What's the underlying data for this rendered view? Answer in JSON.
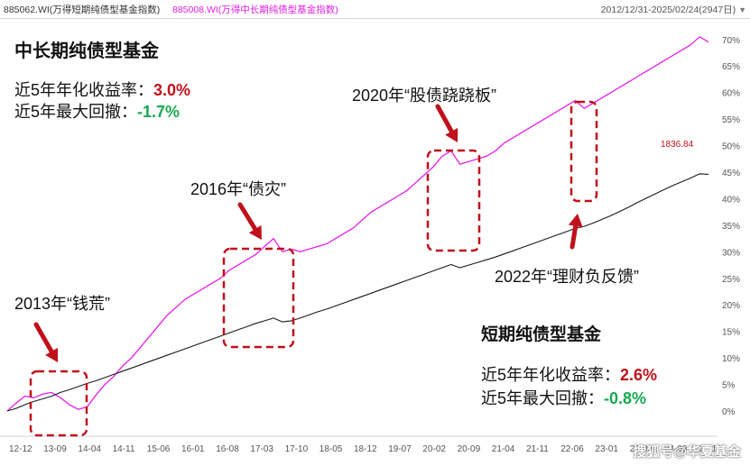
{
  "header": {
    "series1_label": "885062.WI(万得短期纯债型基金指数)",
    "series2_label": "885008.WI(万得中长期纯债型基金指数)",
    "date_range": "2012/12/31-2025/02/24(2947日)",
    "dropdown_icon": "triangle-down-icon"
  },
  "panel_long": {
    "title": "中长期纯债型基金",
    "ret_label": "近5年年化收益率：",
    "ret_value": "3.0%",
    "dd_label": "近5年最大回撤：",
    "dd_value": "-1.7%"
  },
  "panel_short": {
    "title": "短期纯债型基金",
    "ret_label": "近5年年化收益率：",
    "ret_value": "2.6%",
    "dd_label": "近5年最大回撤：",
    "dd_value": "-0.8%"
  },
  "annotations": [
    {
      "text": "2013年“钱荒”"
    },
    {
      "text": "2016年“债灾”"
    },
    {
      "text": "2020年“股债跷跷板”"
    },
    {
      "text": "2022年“理财负反馈”"
    }
  ],
  "last_value_label": "1836.84",
  "watermark": "搜狐号@华夏基金",
  "colors": {
    "long_series": "#e81ee8",
    "short_series": "#1a1a1a",
    "annotation": "#c0101a",
    "value_red": "#c0101a",
    "value_green": "#18a850"
  },
  "chart_data": {
    "type": "line",
    "x_tick_labels": [
      "12-12",
      "13-09",
      "14-04",
      "14-11",
      "15-06",
      "16-01",
      "16-08",
      "17-03",
      "17-10",
      "18-05",
      "18-12",
      "19-07",
      "20-02",
      "20-09",
      "21-04",
      "21-11",
      "22-06",
      "23-01",
      "23-08",
      "24-03",
      "24-10"
    ],
    "y_tick_labels": [
      "0%",
      "5%",
      "10%",
      "15%",
      "20%",
      "25%",
      "30%",
      "35%",
      "40%",
      "45%",
      "50%",
      "55%",
      "60%",
      "65%",
      "70%"
    ],
    "ylim": [
      0,
      72
    ],
    "y_unit": "%",
    "series": [
      {
        "name": "885008.WI(万得中长期纯债型基金指数)",
        "color": "#e81ee8",
        "points": [
          [
            0,
            0
          ],
          [
            1,
            1.5
          ],
          [
            2,
            2.8
          ],
          [
            3,
            2.5
          ],
          [
            4,
            3.2
          ],
          [
            5,
            3.5
          ],
          [
            6,
            2.5
          ],
          [
            7,
            1.2
          ],
          [
            8,
            0.3
          ],
          [
            9,
            0.8
          ],
          [
            10,
            3.0
          ],
          [
            11,
            5.0
          ],
          [
            12,
            6.5
          ],
          [
            13,
            8.5
          ],
          [
            14,
            10.0
          ],
          [
            15,
            12.0
          ],
          [
            16,
            14.0
          ],
          [
            17,
            16.0
          ],
          [
            18,
            18.0
          ],
          [
            19,
            19.5
          ],
          [
            20,
            21.0
          ],
          [
            21,
            22.0
          ],
          [
            22,
            23.0
          ],
          [
            23,
            24.0
          ],
          [
            24,
            25.0
          ],
          [
            25,
            26.5
          ],
          [
            26,
            27.5
          ],
          [
            27,
            28.5
          ],
          [
            28,
            29.5
          ],
          [
            29,
            31.0
          ],
          [
            30,
            32.5
          ],
          [
            31,
            30.0
          ],
          [
            32,
            30.5
          ],
          [
            33,
            30.0
          ],
          [
            34,
            30.5
          ],
          [
            35,
            31.0
          ],
          [
            36,
            31.5
          ],
          [
            37,
            32.5
          ],
          [
            38,
            33.5
          ],
          [
            39,
            34.5
          ],
          [
            40,
            36.0
          ],
          [
            41,
            37.5
          ],
          [
            42,
            38.5
          ],
          [
            43,
            39.5
          ],
          [
            44,
            40.5
          ],
          [
            45,
            41.5
          ],
          [
            46,
            43.0
          ],
          [
            47,
            44.5
          ],
          [
            48,
            46.0
          ],
          [
            49,
            48.0
          ],
          [
            50,
            49.0
          ],
          [
            51,
            46.5
          ],
          [
            52,
            47.0
          ],
          [
            53,
            47.5
          ],
          [
            54,
            48.0
          ],
          [
            55,
            49.0
          ],
          [
            56,
            50.5
          ],
          [
            57,
            51.5
          ],
          [
            58,
            52.5
          ],
          [
            59,
            53.5
          ],
          [
            60,
            54.5
          ],
          [
            61,
            55.5
          ],
          [
            62,
            56.5
          ],
          [
            63,
            57.5
          ],
          [
            64,
            58.5
          ],
          [
            65,
            57.0
          ],
          [
            66,
            58.0
          ],
          [
            67,
            59.0
          ],
          [
            68,
            60.0
          ],
          [
            69,
            61.0
          ],
          [
            70,
            62.0
          ],
          [
            71,
            63.0
          ],
          [
            72,
            64.0
          ],
          [
            73,
            65.0
          ],
          [
            74,
            66.0
          ],
          [
            75,
            67.0
          ],
          [
            76,
            68.0
          ],
          [
            77,
            69.0
          ],
          [
            78,
            70.5
          ],
          [
            79,
            69.5
          ]
        ]
      },
      {
        "name": "885062.WI(万得短期纯债型基金指数)",
        "color": "#1a1a1a",
        "value_label": "1836.84",
        "points": [
          [
            0,
            0
          ],
          [
            1,
            0.5
          ],
          [
            2,
            1.2
          ],
          [
            3,
            1.8
          ],
          [
            4,
            2.3
          ],
          [
            5,
            2.8
          ],
          [
            6,
            3.5
          ],
          [
            7,
            4.0
          ],
          [
            8,
            4.6
          ],
          [
            9,
            5.2
          ],
          [
            10,
            5.7
          ],
          [
            11,
            6.3
          ],
          [
            12,
            6.9
          ],
          [
            13,
            7.5
          ],
          [
            14,
            8.1
          ],
          [
            15,
            8.7
          ],
          [
            16,
            9.3
          ],
          [
            17,
            9.9
          ],
          [
            18,
            10.5
          ],
          [
            19,
            11.1
          ],
          [
            20,
            11.7
          ],
          [
            21,
            12.3
          ],
          [
            22,
            12.9
          ],
          [
            23,
            13.5
          ],
          [
            24,
            14.1
          ],
          [
            25,
            14.7
          ],
          [
            26,
            15.3
          ],
          [
            27,
            15.9
          ],
          [
            28,
            16.5
          ],
          [
            29,
            17.0
          ],
          [
            30,
            17.5
          ],
          [
            31,
            16.8
          ],
          [
            32,
            17.0
          ],
          [
            33,
            17.5
          ],
          [
            34,
            18.1
          ],
          [
            35,
            18.7
          ],
          [
            36,
            19.2
          ],
          [
            37,
            19.8
          ],
          [
            38,
            20.4
          ],
          [
            39,
            21.0
          ],
          [
            40,
            21.6
          ],
          [
            41,
            22.2
          ],
          [
            42,
            22.8
          ],
          [
            43,
            23.4
          ],
          [
            44,
            24.0
          ],
          [
            45,
            24.6
          ],
          [
            46,
            25.2
          ],
          [
            47,
            25.8
          ],
          [
            48,
            26.4
          ],
          [
            49,
            27.0
          ],
          [
            50,
            27.6
          ],
          [
            51,
            27.0
          ],
          [
            52,
            27.5
          ],
          [
            53,
            28.0
          ],
          [
            54,
            28.5
          ],
          [
            55,
            29.0
          ],
          [
            56,
            29.6
          ],
          [
            57,
            30.2
          ],
          [
            58,
            30.8
          ],
          [
            59,
            31.4
          ],
          [
            60,
            32.0
          ],
          [
            61,
            32.6
          ],
          [
            62,
            33.2
          ],
          [
            63,
            33.8
          ],
          [
            64,
            34.4
          ],
          [
            65,
            34.8
          ],
          [
            66,
            35.4
          ],
          [
            67,
            36.1
          ],
          [
            68,
            36.8
          ],
          [
            69,
            37.6
          ],
          [
            70,
            38.4
          ],
          [
            71,
            39.3
          ],
          [
            72,
            40.1
          ],
          [
            73,
            40.9
          ],
          [
            74,
            41.7
          ],
          [
            75,
            42.5
          ],
          [
            76,
            43.2
          ],
          [
            77,
            43.9
          ],
          [
            78,
            44.7
          ],
          [
            79,
            44.6
          ]
        ]
      }
    ],
    "highlight_boxes": [
      "2013年“钱荒”",
      "2016年“债灾”",
      "2020年“股债跷跷板”",
      "2022年“理财负反馈”"
    ],
    "grid": false,
    "legend": "top-left header text"
  }
}
